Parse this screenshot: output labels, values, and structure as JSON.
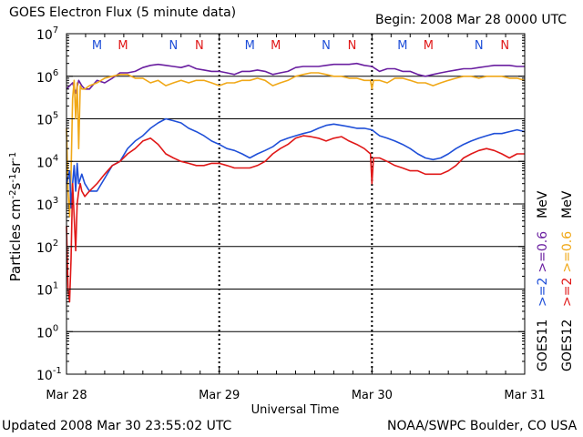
{
  "header": {
    "title": "GOES Electron Flux (5 minute data)",
    "begin": "Begin: 2008 Mar 28 0000 UTC"
  },
  "footer": {
    "updated": "Updated 2008 Mar 30 23:55:02 UTC",
    "credit": "NOAA/SWPC Boulder, CO USA"
  },
  "colors": {
    "goes11_2mev": "#1f4fd8",
    "goes11_06mev": "#6a1fa0",
    "goes12_2mev": "#e01818",
    "goes12_06mev": "#f0a818",
    "noon_blue": "#1f4fd8",
    "midnight_red": "#e01818"
  },
  "chart_data": {
    "type": "line",
    "y_scale": "log",
    "ylim": [
      0.1,
      10000000
    ],
    "ylabel": "Particles cm-2s-1sr-1",
    "xlabel": "Universal Time",
    "x_ticks": [
      "Mar 28",
      "Mar 29",
      "Mar 30",
      "Mar 31"
    ],
    "y_ticks": [
      {
        "base": "10",
        "exp": "7",
        "value": 10000000
      },
      {
        "base": "10",
        "exp": "6",
        "value": 1000000
      },
      {
        "base": "10",
        "exp": "5",
        "value": 100000
      },
      {
        "base": "10",
        "exp": "4",
        "value": 10000
      },
      {
        "base": "10",
        "exp": "3",
        "value": 1000
      },
      {
        "base": "10",
        "exp": "2",
        "value": 100
      },
      {
        "base": "10",
        "exp": "1",
        "value": 10
      },
      {
        "base": "10",
        "exp": "0",
        "value": 1
      },
      {
        "base": "10",
        "exp": "-1",
        "value": 0.1
      }
    ],
    "dashed_threshold": 1000,
    "mn_markers": [
      {
        "label": "M",
        "day": 0.2,
        "color": "blue"
      },
      {
        "label": "M",
        "day": 0.37,
        "color": "red"
      },
      {
        "label": "N",
        "day": 0.7,
        "color": "blue"
      },
      {
        "label": "N",
        "day": 0.87,
        "color": "red"
      },
      {
        "label": "M",
        "day": 1.2,
        "color": "blue"
      },
      {
        "label": "M",
        "day": 1.37,
        "color": "red"
      },
      {
        "label": "N",
        "day": 1.7,
        "color": "blue"
      },
      {
        "label": "N",
        "day": 1.87,
        "color": "red"
      },
      {
        "label": "M",
        "day": 2.2,
        "color": "blue"
      },
      {
        "label": "M",
        "day": 2.37,
        "color": "red"
      },
      {
        "label": "N",
        "day": 2.7,
        "color": "blue"
      },
      {
        "label": "N",
        "day": 2.87,
        "color": "red"
      }
    ],
    "right_legend": {
      "goes11_blue": ">=2",
      "goes11_purple": ">=0.6",
      "mev_1": "MeV",
      "goes12_red": ">=2",
      "goes12_orange": ">=0.6",
      "mev_2": "MeV",
      "sat1": "GOES11",
      "sat2": "GOES12"
    },
    "series": [
      {
        "key": "g11_06",
        "color": "#6a1fa0",
        "x": [
          0,
          0.04,
          0.06,
          0.08,
          0.1,
          0.12,
          0.15,
          0.2,
          0.25,
          0.3,
          0.35,
          0.4,
          0.45,
          0.5,
          0.55,
          0.6,
          0.65,
          0.7,
          0.75,
          0.8,
          0.85,
          0.9,
          0.95,
          1.0,
          1.05,
          1.1,
          1.15,
          1.2,
          1.25,
          1.3,
          1.35,
          1.4,
          1.45,
          1.5,
          1.55,
          1.6,
          1.65,
          1.7,
          1.75,
          1.8,
          1.85,
          1.9,
          1.95,
          2.0,
          2.05,
          2.1,
          2.15,
          2.2,
          2.25,
          2.3,
          2.35,
          2.4,
          2.45,
          2.5,
          2.55,
          2.6,
          2.65,
          2.7,
          2.75,
          2.8,
          2.85,
          2.9,
          2.95,
          3.0
        ],
        "y": [
          500000,
          700000,
          400000,
          800000,
          600000,
          500000,
          500000,
          800000,
          700000,
          900000,
          1200000,
          1200000,
          1300000,
          1600000,
          1800000,
          1900000,
          1800000,
          1700000,
          1600000,
          1800000,
          1500000,
          1400000,
          1300000,
          1300000,
          1200000,
          1100000,
          1300000,
          1300000,
          1400000,
          1300000,
          1100000,
          1200000,
          1300000,
          1600000,
          1700000,
          1700000,
          1700000,
          1800000,
          1900000,
          1900000,
          1900000,
          2000000,
          1800000,
          1700000,
          1300000,
          1500000,
          1500000,
          1300000,
          1300000,
          1100000,
          1000000,
          1100000,
          1200000,
          1300000,
          1400000,
          1500000,
          1500000,
          1600000,
          1700000,
          1800000,
          1800000,
          1800000,
          1700000,
          1700000
        ]
      },
      {
        "key": "g12_06",
        "color": "#f0a818",
        "x": [
          0,
          0.01,
          0.02,
          0.03,
          0.04,
          0.05,
          0.06,
          0.07,
          0.08,
          0.09,
          0.1,
          0.12,
          0.15,
          0.2,
          0.25,
          0.3,
          0.35,
          0.4,
          0.45,
          0.5,
          0.55,
          0.6,
          0.65,
          0.7,
          0.75,
          0.8,
          0.85,
          0.9,
          0.95,
          1.0,
          1.05,
          1.1,
          1.15,
          1.2,
          1.25,
          1.3,
          1.35,
          1.4,
          1.45,
          1.5,
          1.55,
          1.6,
          1.65,
          1.7,
          1.75,
          1.8,
          1.85,
          1.9,
          1.95,
          1.99,
          2.0,
          2.01,
          2.05,
          2.1,
          2.15,
          2.2,
          2.25,
          2.3,
          2.35,
          2.4,
          2.45,
          2.5,
          2.55,
          2.6,
          2.65,
          2.7,
          2.75,
          2.8,
          2.85,
          2.9,
          2.95,
          3.0
        ],
        "y": [
          60000,
          2000,
          500,
          5000,
          300000,
          800000,
          100000,
          700000,
          20000,
          600000,
          500000,
          500000,
          600000,
          700000,
          900000,
          1000000,
          1100000,
          1100000,
          900000,
          900000,
          700000,
          800000,
          600000,
          700000,
          800000,
          700000,
          800000,
          800000,
          700000,
          600000,
          700000,
          700000,
          800000,
          800000,
          900000,
          800000,
          600000,
          700000,
          800000,
          1000000,
          1100000,
          1200000,
          1200000,
          1100000,
          1000000,
          1000000,
          900000,
          900000,
          800000,
          800000,
          500000,
          800000,
          800000,
          700000,
          900000,
          900000,
          800000,
          700000,
          700000,
          600000,
          700000,
          800000,
          900000,
          1000000,
          1000000,
          900000,
          1000000,
          1000000,
          1000000,
          900000,
          900000,
          800000
        ]
      },
      {
        "key": "g11_2",
        "color": "#1f4fd8",
        "x": [
          0,
          0.02,
          0.03,
          0.04,
          0.05,
          0.06,
          0.07,
          0.08,
          0.1,
          0.12,
          0.15,
          0.2,
          0.25,
          0.3,
          0.35,
          0.4,
          0.45,
          0.5,
          0.55,
          0.6,
          0.65,
          0.7,
          0.75,
          0.8,
          0.85,
          0.9,
          0.95,
          1.0,
          1.05,
          1.1,
          1.15,
          1.2,
          1.25,
          1.3,
          1.35,
          1.4,
          1.45,
          1.5,
          1.55,
          1.6,
          1.65,
          1.7,
          1.75,
          1.8,
          1.85,
          1.9,
          1.95,
          2.0,
          2.05,
          2.1,
          2.15,
          2.2,
          2.25,
          2.3,
          2.35,
          2.4,
          2.45,
          2.5,
          2.55,
          2.6,
          2.65,
          2.7,
          2.75,
          2.8,
          2.85,
          2.9,
          2.95,
          3.0
        ],
        "y": [
          3000,
          6000,
          800,
          3000,
          8000,
          2000,
          9000,
          3000,
          5000,
          3000,
          2000,
          2000,
          4000,
          8000,
          10000,
          20000,
          30000,
          40000,
          60000,
          80000,
          100000,
          90000,
          80000,
          60000,
          50000,
          40000,
          30000,
          25000,
          20000,
          18000,
          15000,
          12000,
          15000,
          18000,
          22000,
          30000,
          35000,
          40000,
          45000,
          50000,
          60000,
          70000,
          75000,
          70000,
          65000,
          60000,
          60000,
          55000,
          40000,
          35000,
          30000,
          25000,
          20000,
          15000,
          12000,
          11000,
          12000,
          15000,
          20000,
          25000,
          30000,
          35000,
          40000,
          45000,
          45000,
          50000,
          55000,
          50000
        ]
      },
      {
        "key": "g12_2",
        "color": "#e01818",
        "x": [
          0,
          0.01,
          0.02,
          0.03,
          0.04,
          0.05,
          0.06,
          0.07,
          0.08,
          0.09,
          0.1,
          0.12,
          0.15,
          0.2,
          0.25,
          0.3,
          0.35,
          0.4,
          0.45,
          0.5,
          0.55,
          0.6,
          0.65,
          0.7,
          0.75,
          0.8,
          0.85,
          0.9,
          0.95,
          1.0,
          1.05,
          1.1,
          1.15,
          1.2,
          1.25,
          1.3,
          1.35,
          1.4,
          1.45,
          1.5,
          1.55,
          1.6,
          1.65,
          1.7,
          1.75,
          1.8,
          1.85,
          1.9,
          1.95,
          1.99,
          2.0,
          2.01,
          2.05,
          2.1,
          2.15,
          2.2,
          2.25,
          2.3,
          2.35,
          2.4,
          2.45,
          2.5,
          2.55,
          2.6,
          2.65,
          2.7,
          2.75,
          2.8,
          2.85,
          2.9,
          2.95,
          3.0
        ],
        "y": [
          300,
          10,
          5,
          50,
          3000,
          500,
          80,
          1000,
          2000,
          3000,
          2000,
          1500,
          2000,
          3000,
          5000,
          8000,
          10000,
          15000,
          20000,
          30000,
          35000,
          25000,
          15000,
          12000,
          10000,
          9000,
          8000,
          8000,
          9000,
          9000,
          8000,
          7000,
          7000,
          7000,
          8000,
          10000,
          15000,
          20000,
          25000,
          35000,
          40000,
          38000,
          35000,
          30000,
          35000,
          38000,
          30000,
          25000,
          20000,
          15000,
          3000,
          12000,
          12000,
          10000,
          8000,
          7000,
          6000,
          6000,
          5000,
          5000,
          5000,
          6000,
          8000,
          12000,
          15000,
          18000,
          20000,
          18000,
          15000,
          12000,
          15000,
          15000
        ]
      }
    ]
  }
}
